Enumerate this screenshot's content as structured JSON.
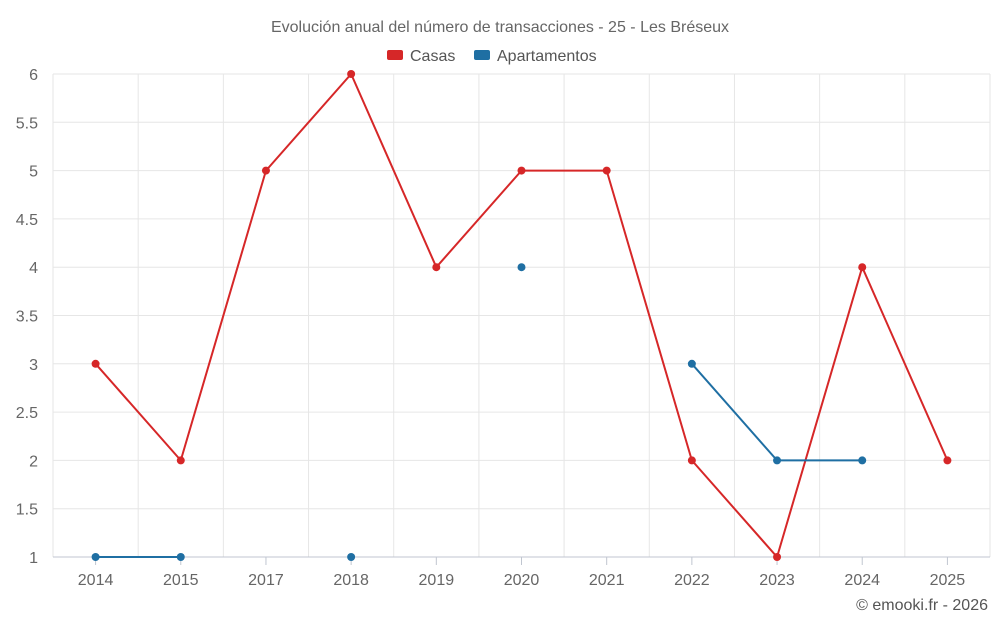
{
  "chart_data": {
    "type": "line",
    "title": "Evolución anual del número de transacciones - 25 - Les Bréseux",
    "categories": [
      "2014",
      "2015",
      "2017",
      "2018",
      "2019",
      "2020",
      "2021",
      "2022",
      "2023",
      "2024",
      "2025"
    ],
    "series": [
      {
        "name": "Casas",
        "color": "#d62728",
        "values": [
          3,
          2,
          5,
          6,
          4,
          5,
          5,
          2,
          1,
          4,
          2
        ]
      },
      {
        "name": "Apartamentos",
        "color": "#1f6fa3",
        "values": [
          1,
          1,
          null,
          1,
          null,
          4,
          null,
          3,
          2,
          2,
          null
        ]
      }
    ],
    "y_ticks": [
      "1",
      "1.5",
      "2",
      "2.5",
      "3",
      "3.5",
      "4",
      "4.5",
      "5",
      "5.5",
      "6"
    ],
    "ylim": [
      1,
      6
    ],
    "xlabel": "",
    "ylabel": "",
    "legend_position": "top-center",
    "grid": true
  },
  "credit": "© emooki.fr - 2026"
}
